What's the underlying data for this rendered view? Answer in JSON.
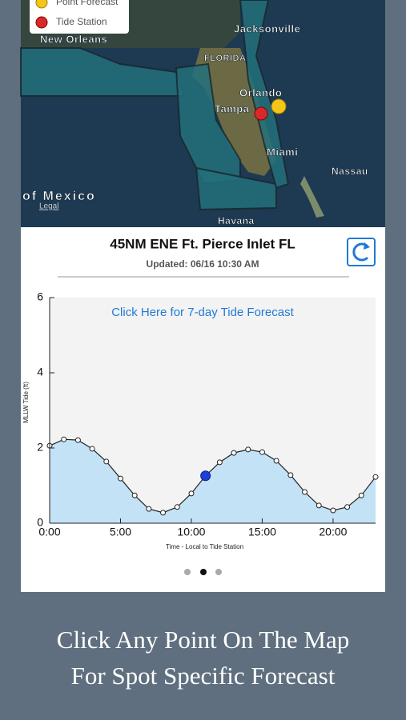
{
  "map": {
    "legend": [
      "Point Forecast",
      "Tide Station"
    ],
    "places": [
      "New Orleans",
      "Jacksonville",
      "FLORIDA",
      "Orlando",
      "Tampa",
      "Miami",
      "Nassau",
      "of Mexico",
      "Havana"
    ],
    "attribution": "Legal"
  },
  "panel": {
    "title": "45NM ENE Ft. Pierce Inlet FL",
    "updated": "Updated: 06/16 10:30 AM"
  },
  "chart_data": {
    "type": "line",
    "link": "Click Here for 7-day Tide Forecast",
    "y_label": "MLLW Tide (ft)",
    "x_label": "Time - Local to Tide Station",
    "x": [
      0,
      1,
      2,
      3,
      4,
      5,
      6,
      7,
      8,
      9,
      10,
      11,
      12,
      13,
      14,
      15,
      16,
      17,
      18,
      19,
      20,
      21,
      22,
      23
    ],
    "series": [
      {
        "color": "#222222",
        "values": [
          2.06,
          2.23,
          2.21,
          1.98,
          1.64,
          1.19,
          0.74,
          0.38,
          0.28,
          0.43,
          0.79,
          1.26,
          1.62,
          1.87,
          1.96,
          1.89,
          1.66,
          1.28,
          0.83,
          0.47,
          0.34,
          0.43,
          0.74,
          1.23
        ]
      }
    ],
    "current": {
      "x": 11,
      "y": 1.26,
      "color": "#1f3fd6"
    },
    "area_color": "#c3e2f6",
    "xlim": [
      0,
      23
    ],
    "ylim": [
      0,
      6
    ],
    "xticks": [
      {
        "value": 0,
        "label": "0:00"
      },
      {
        "value": 5,
        "label": "5:00"
      },
      {
        "value": 10,
        "label": "10:00"
      },
      {
        "value": 15,
        "label": "15:00"
      },
      {
        "value": 20,
        "label": "20:00"
      }
    ],
    "yticks": [
      0,
      2,
      4,
      6
    ]
  },
  "caption": [
    "Click Any Point On The Map",
    "For Spot Specific Forecast"
  ]
}
